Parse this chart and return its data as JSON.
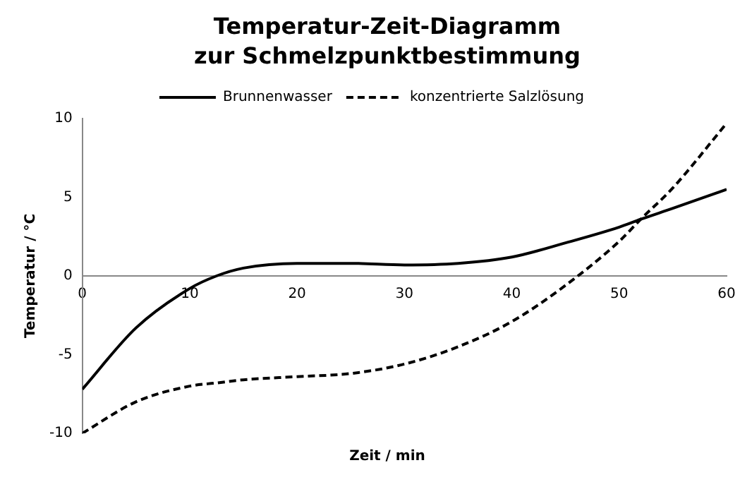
{
  "chart_data": {
    "type": "line",
    "title": "Temperatur-Zeit-Diagramm\nzur Schmelzpunktbestimmung",
    "xlabel": "Zeit / min",
    "ylabel": "Temperatur / °C",
    "x": [
      0,
      5,
      10,
      12.5,
      15,
      20,
      25,
      30,
      35,
      40,
      45,
      50,
      52,
      55,
      60
    ],
    "series": [
      {
        "name": "Brunnenwasser",
        "color": "#000000",
        "line_style": "solid",
        "values": [
          -7.2,
          -3.3,
          -0.8,
          0,
          0.5,
          0.8,
          0.8,
          0.7,
          0.8,
          1.2,
          2.1,
          3.1,
          3.6,
          4.3,
          5.5
        ]
      },
      {
        "name": "konzentrierte Salzlösung",
        "color": "#000000",
        "line_style": "dashed",
        "values": [
          -10,
          -8,
          -7,
          -6.8,
          -6.6,
          -6.4,
          -6.2,
          -5.6,
          -4.5,
          -2.9,
          -0.6,
          2.2,
          3.6,
          5.6,
          9.7
        ]
      }
    ],
    "xlim": [
      0,
      60
    ],
    "xticks": [
      0,
      10,
      20,
      30,
      40,
      50,
      60
    ],
    "ylim": [
      -10,
      10
    ],
    "yticks": [
      -10,
      -5,
      0,
      5,
      10
    ],
    "grid": false,
    "legend": "top",
    "marker": "none"
  }
}
